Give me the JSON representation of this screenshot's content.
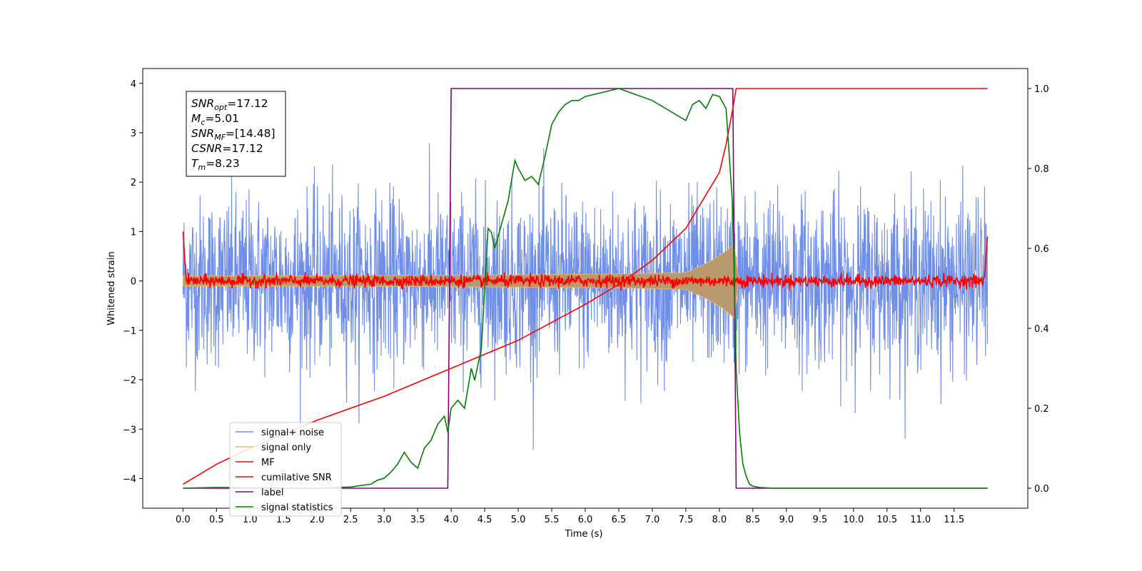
{
  "chart_data": {
    "type": "line",
    "xlabel": "Time (s)",
    "ylabel": "Whitened strain",
    "xlim": [
      -0.6,
      12.6
    ],
    "ylim": [
      -4.6,
      4.3
    ],
    "ylim_right": [
      -0.05,
      1.05
    ],
    "x_ticks": [
      "0.0",
      "0.5",
      "1.0",
      "1.5",
      "2.0",
      "2.5",
      "3.0",
      "3.5",
      "4.0",
      "4.5",
      "5.0",
      "5.5",
      "6.0",
      "6.5",
      "7.0",
      "7.5",
      "8.0",
      "8.5",
      "9.0",
      "9.5",
      "10.0",
      "10.5",
      "11.0",
      "11.5"
    ],
    "y_ticks": [
      "4",
      "3",
      "2",
      "1",
      "0",
      "−1",
      "−2",
      "−3",
      "−4"
    ],
    "y_tick_values": [
      4,
      3,
      2,
      1,
      0,
      -1,
      -2,
      -3,
      -4
    ],
    "y2_ticks": [
      "1.0",
      "0.8",
      "0.6",
      "0.4",
      "0.2",
      "0.0"
    ],
    "y2_tick_values": [
      1.0,
      0.8,
      0.6,
      0.4,
      0.2,
      0.0
    ],
    "annotation": [
      {
        "sym": "SNR",
        "sub": "opt",
        "val": "=17.12"
      },
      {
        "sym": "M",
        "sub": "c",
        "val": "=5.01"
      },
      {
        "sym": "SNR",
        "sub": "MF",
        "val": "=[14.48]"
      },
      {
        "sym": "CSNR",
        "sub": "",
        "val": "=17.12"
      },
      {
        "sym": "T",
        "sub": "m",
        "val": "=8.23"
      }
    ],
    "legend_position": "lower-left",
    "series": [
      {
        "name": "signal+ noise",
        "color": "#6f8ee8",
        "axis": "left",
        "std": 0.85,
        "x_range": [
          0.0,
          12.0
        ]
      },
      {
        "name": "signal only",
        "color": "#f5b96b",
        "axis": "left",
        "amp_start": 0.1,
        "amp_peak": 0.92,
        "merger_time": 8.23
      },
      {
        "name": "MF",
        "color": "#ff0000",
        "axis": "left",
        "std": 0.06
      },
      {
        "name": "cumilative SNR",
        "color": "#ff0000",
        "axis": "right",
        "x": [
          0.0,
          0.5,
          1.0,
          2.0,
          3.0,
          4.0,
          5.0,
          6.0,
          6.5,
          7.0,
          7.5,
          8.0,
          8.1,
          8.2,
          8.25,
          12.0
        ],
        "values": [
          0.01,
          0.06,
          0.1,
          0.17,
          0.23,
          0.3,
          0.37,
          0.46,
          0.51,
          0.57,
          0.65,
          0.79,
          0.86,
          0.95,
          1.0,
          1.0
        ]
      },
      {
        "name": "label",
        "color": "#800080",
        "axis": "right",
        "x": [
          0.0,
          3.95,
          4.0,
          8.2,
          8.25,
          12.0
        ],
        "values": [
          0.0,
          0.0,
          1.0,
          1.0,
          0.0,
          0.0
        ]
      },
      {
        "name": "signal statistics",
        "color": "#008000",
        "axis": "right",
        "x": [
          0.0,
          0.5,
          1.0,
          2.0,
          2.5,
          2.8,
          2.9,
          3.0,
          3.1,
          3.2,
          3.3,
          3.4,
          3.5,
          3.6,
          3.7,
          3.8,
          3.9,
          3.95,
          4.0,
          4.1,
          4.2,
          4.3,
          4.35,
          4.45,
          4.55,
          4.6,
          4.65,
          4.75,
          4.85,
          4.95,
          5.0,
          5.1,
          5.2,
          5.3,
          5.4,
          5.5,
          5.6,
          5.7,
          5.8,
          5.9,
          6.0,
          6.5,
          7.0,
          7.5,
          7.6,
          7.7,
          7.8,
          7.9,
          8.0,
          8.1,
          8.2,
          8.25,
          8.3,
          8.35,
          8.4,
          8.45,
          8.5,
          8.6,
          8.8,
          9.0,
          10.0,
          11.0,
          12.0
        ],
        "values": [
          0.0,
          0.002,
          0.001,
          0.0,
          0.003,
          0.01,
          0.02,
          0.025,
          0.04,
          0.06,
          0.09,
          0.065,
          0.05,
          0.1,
          0.12,
          0.16,
          0.18,
          0.14,
          0.2,
          0.22,
          0.2,
          0.3,
          0.27,
          0.35,
          0.65,
          0.64,
          0.6,
          0.66,
          0.72,
          0.82,
          0.8,
          0.77,
          0.78,
          0.76,
          0.83,
          0.91,
          0.94,
          0.96,
          0.97,
          0.97,
          0.98,
          1.0,
          0.97,
          0.92,
          0.96,
          0.97,
          0.95,
          0.985,
          0.98,
          0.95,
          0.7,
          0.3,
          0.14,
          0.06,
          0.03,
          0.01,
          0.005,
          0.002,
          0.0,
          0.0,
          0.0,
          0.0,
          0.0
        ]
      }
    ]
  }
}
